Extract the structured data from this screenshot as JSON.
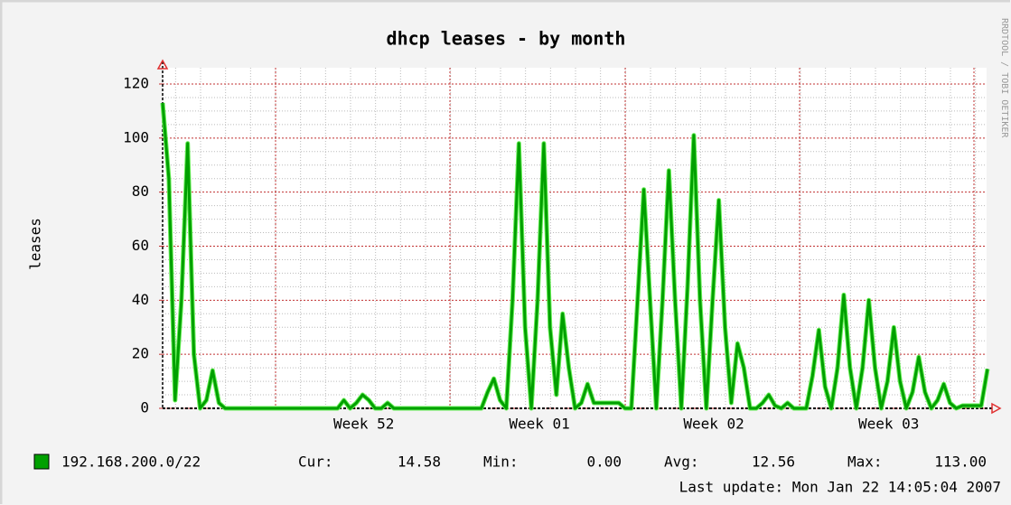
{
  "chart_data": {
    "type": "line",
    "title": "dhcp leases - by month",
    "y_label": "leases",
    "side_text": "RRDTOOL / TOBI OETIKER",
    "last_update": "Last update: Mon Jan 22 14:05:04 2007",
    "ylim": [
      0,
      120
    ],
    "yticks": [
      0,
      20,
      40,
      60,
      80,
      100,
      120
    ],
    "xticks": [
      {
        "value": 32.2,
        "label": "Week 52"
      },
      {
        "value": 60.3,
        "label": "Week 01"
      },
      {
        "value": 88.2,
        "label": "Week 02"
      },
      {
        "value": 116.2,
        "label": "Week 03"
      }
    ],
    "grid": true,
    "series": [
      {
        "name": "192.168.200.0/22",
        "color": "#00a000",
        "values": [
          113,
          85,
          3,
          40,
          98,
          20,
          0,
          3,
          14,
          2,
          0,
          0,
          0,
          0,
          0,
          0,
          0,
          0,
          0,
          0,
          0,
          0,
          0,
          0,
          0,
          0,
          0,
          0,
          0,
          3,
          0,
          2,
          5,
          3,
          0,
          0,
          2,
          0,
          0,
          0,
          0,
          0,
          0,
          0,
          0,
          0,
          0,
          0,
          0,
          0,
          0,
          0,
          6,
          11,
          3,
          0,
          40,
          98,
          30,
          0,
          40,
          98,
          30,
          5,
          35,
          15,
          0,
          2,
          9,
          2,
          2,
          2,
          2,
          2,
          0,
          0,
          40,
          81,
          40,
          0,
          40,
          88,
          40,
          0,
          45,
          101,
          40,
          0,
          40,
          77,
          30,
          2,
          24,
          15,
          0,
          0,
          2,
          5,
          1,
          0,
          2,
          0,
          0,
          0,
          12,
          29,
          8,
          0,
          15,
          42,
          15,
          0,
          15,
          40,
          15,
          0,
          10,
          30,
          10,
          0,
          6,
          19,
          6,
          0,
          3,
          9,
          2,
          0,
          1,
          1,
          1,
          1,
          14.58
        ]
      }
    ],
    "legend_stats": [
      {
        "label": "Cur:",
        "value": "14.58"
      },
      {
        "label": "Min:",
        "value": "0.00"
      },
      {
        "label": "Avg:",
        "value": "12.56"
      },
      {
        "label": "Max:",
        "value": "113.00"
      }
    ]
  }
}
